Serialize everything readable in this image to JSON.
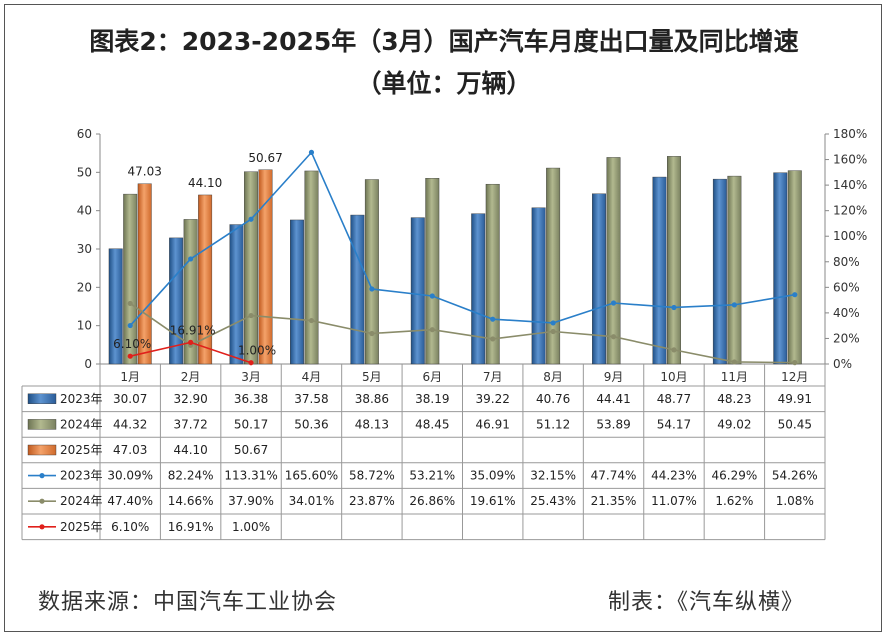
{
  "title_line1": "图表2：2023-2025年（3月）国产汽车月度出口量及同比增速",
  "title_line2": "（单位：万辆）",
  "source_text": "数据来源：中国汽车工业协会",
  "maker_text": "制表：《汽车纵横》",
  "chart_data": {
    "type": "bar",
    "categories": [
      "1月",
      "2月",
      "3月",
      "4月",
      "5月",
      "6月",
      "7月",
      "8月",
      "9月",
      "10月",
      "11月",
      "12月"
    ],
    "ylim": [
      0,
      60
    ],
    "y_ticks": [
      "0",
      "10",
      "20",
      "30",
      "40",
      "50",
      "60"
    ],
    "y2lim": [
      0,
      180
    ],
    "y2_ticks": [
      "0%",
      "20%",
      "40%",
      "60%",
      "80%",
      "100%",
      "120%",
      "140%",
      "160%",
      "180%"
    ],
    "bar_series": [
      {
        "name": "2023年",
        "color": "#3d6fa8",
        "values": [
          30.07,
          32.9,
          36.38,
          37.58,
          38.86,
          38.19,
          39.22,
          40.76,
          44.41,
          48.77,
          48.23,
          49.91
        ],
        "labels": [
          "30.07",
          "32.90",
          "36.38",
          "37.58",
          "38.86",
          "38.19",
          "39.22",
          "40.76",
          "44.41",
          "48.77",
          "48.23",
          "49.91"
        ]
      },
      {
        "name": "2024年",
        "color": "#8e9670",
        "values": [
          44.32,
          37.72,
          50.17,
          50.36,
          48.13,
          48.45,
          46.91,
          51.12,
          53.89,
          54.17,
          49.02,
          50.45
        ],
        "labels": [
          "44.32",
          "37.72",
          "50.17",
          "50.36",
          "48.13",
          "48.45",
          "46.91",
          "51.12",
          "53.89",
          "54.17",
          "49.02",
          "50.45"
        ]
      },
      {
        "name": "2025年",
        "color": "#e07b3c",
        "values": [
          47.03,
          44.1,
          50.67
        ],
        "labels": [
          "47.03",
          "44.10",
          "50.67"
        ]
      }
    ],
    "line_series": [
      {
        "name": "2023年",
        "color": "#2a7fc9",
        "values": [
          30.09,
          82.24,
          113.31,
          165.6,
          58.72,
          53.21,
          35.09,
          32.15,
          47.74,
          44.23,
          46.29,
          54.26
        ],
        "labels": [
          "30.09%",
          "82.24%",
          "113.31%",
          "165.60%",
          "58.72%",
          "53.21%",
          "35.09%",
          "32.15%",
          "47.74%",
          "44.23%",
          "46.29%",
          "54.26%"
        ]
      },
      {
        "name": "2024年",
        "color": "#8a8c6a",
        "values": [
          47.4,
          14.66,
          37.9,
          34.01,
          23.87,
          26.86,
          19.61,
          25.43,
          21.35,
          11.07,
          1.62,
          1.08
        ],
        "labels": [
          "47.40%",
          "14.66%",
          "37.90%",
          "34.01%",
          "23.87%",
          "26.86%",
          "19.61%",
          "25.43%",
          "21.35%",
          "11.07%",
          "1.62%",
          "1.08%"
        ]
      },
      {
        "name": "2025年",
        "color": "#e0201b",
        "values": [
          6.1,
          16.91,
          1.0
        ],
        "labels": [
          "6.10%",
          "16.91%",
          "1.00%"
        ]
      }
    ],
    "bar_value_labels_2025": [
      "47.03",
      "44.10",
      "50.67"
    ],
    "line_value_labels_2025": [
      "6.10%",
      "16.91%",
      "1.00%"
    ]
  }
}
